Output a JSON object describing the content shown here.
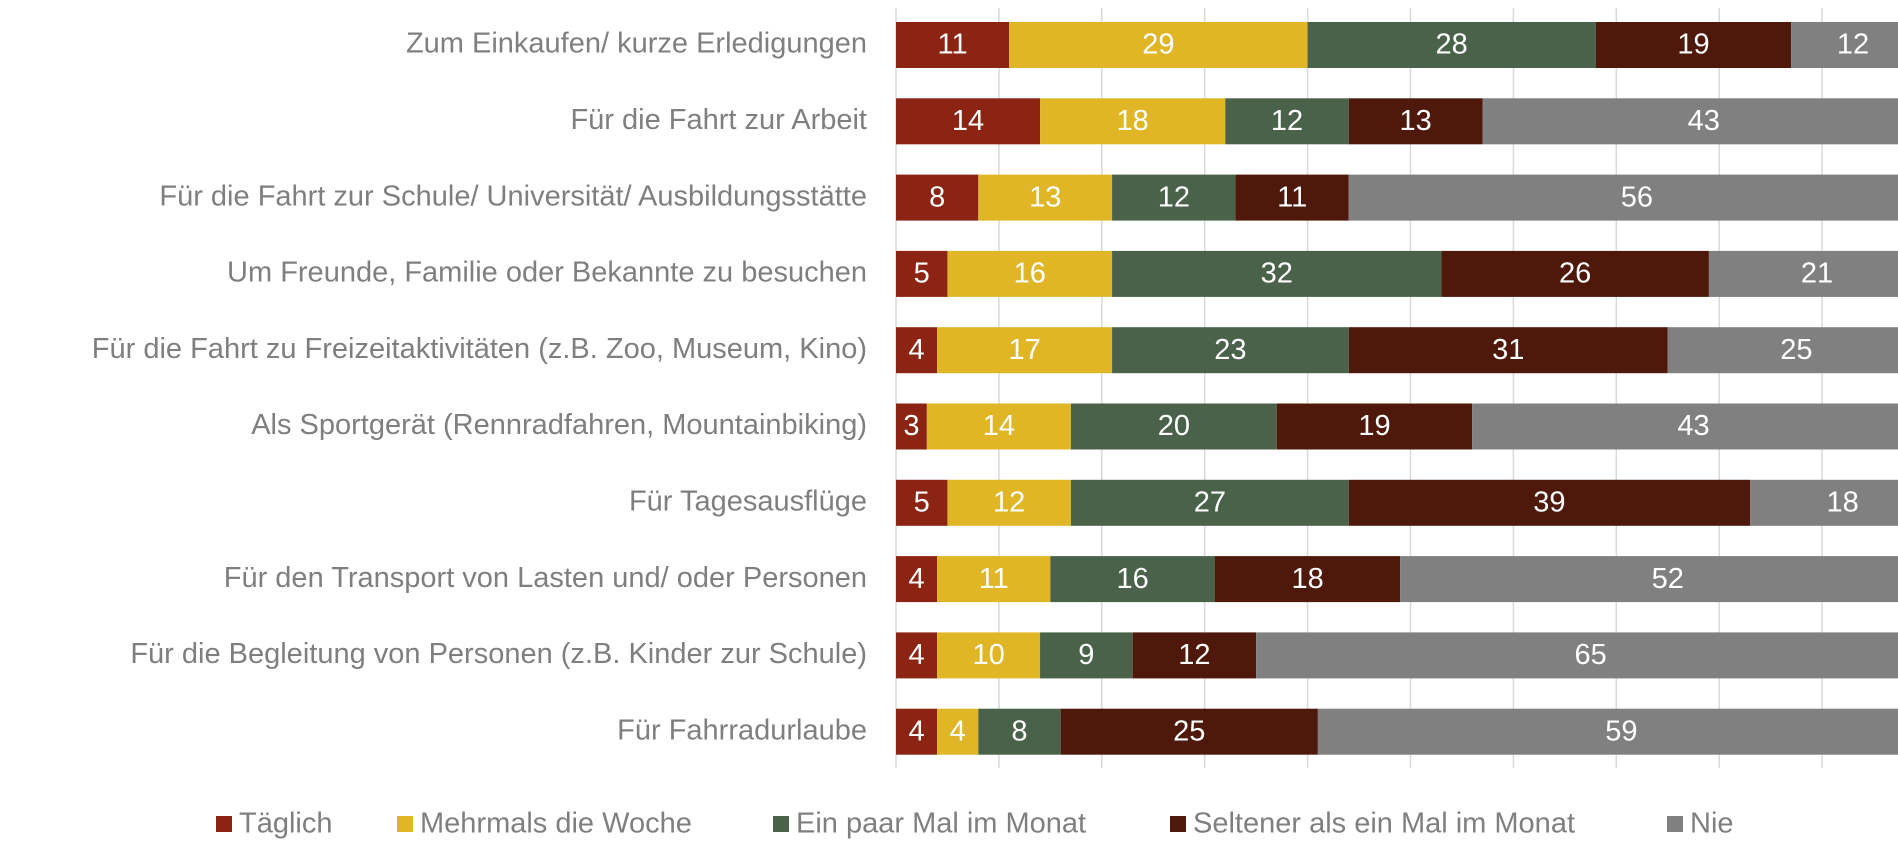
{
  "chart_data": {
    "type": "stacked_barh",
    "categories": [
      "Zum Einkaufen/ kurze Erledigungen",
      "Für die Fahrt zur Arbeit",
      "Für die Fahrt zur Schule/ Universität/ Ausbildungsstätte",
      "Um Freunde, Familie oder Bekannte zu besuchen",
      "Für die Fahrt zu Freizeitaktivitäten (z.B. Zoo, Museum, Kino)",
      "Als Sportgerät (Rennradfahren, Mountainbiking)",
      "Für Tagesausflüge",
      "Für den Transport von Lasten und/ oder Personen",
      "Für die Begleitung von Personen (z.B. Kinder zur Schule)",
      "Für Fahrradurlaube"
    ],
    "series": [
      {
        "name": "Täglich",
        "color": "#8b2412",
        "values": [
          11,
          14,
          8,
          5,
          4,
          3,
          5,
          4,
          4,
          4
        ]
      },
      {
        "name": "Mehrmals die Woche",
        "color": "#e0b626",
        "values": [
          29,
          18,
          13,
          16,
          17,
          14,
          12,
          11,
          10,
          4
        ]
      },
      {
        "name": "Ein paar Mal im Monat",
        "color": "#4a624a",
        "values": [
          28,
          12,
          12,
          32,
          23,
          20,
          27,
          16,
          9,
          8
        ]
      },
      {
        "name": "Seltener als ein Mal im Monat",
        "color": "#4e190b",
        "values": [
          19,
          13,
          11,
          26,
          31,
          19,
          39,
          18,
          12,
          25
        ]
      },
      {
        "name": "Nie",
        "color": "#808080",
        "values": [
          12,
          43,
          56,
          21,
          25,
          43,
          18,
          52,
          65,
          59
        ]
      }
    ],
    "xlim": [
      0,
      100
    ],
    "xticks": [
      0,
      10,
      20,
      30,
      40,
      50,
      60,
      70,
      80,
      90,
      100
    ],
    "grid": true
  }
}
